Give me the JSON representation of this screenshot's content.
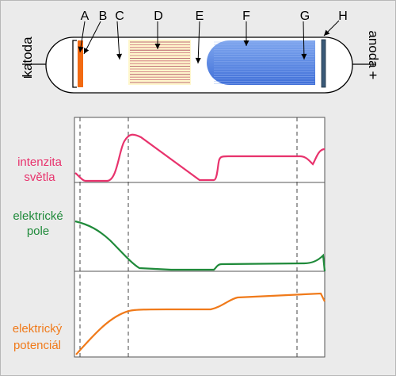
{
  "tube": {
    "cathode_label": "katoda",
    "anode_label": "anoda",
    "minus_sign": "–",
    "plus_sign": "+",
    "regions": [
      {
        "letter": "A"
      },
      {
        "letter": "B"
      },
      {
        "letter": "C"
      },
      {
        "letter": "D"
      },
      {
        "letter": "E"
      },
      {
        "letter": "F"
      },
      {
        "letter": "G"
      },
      {
        "letter": "H"
      }
    ]
  },
  "graphs": {
    "light_intensity": {
      "label_line1": "intenzita",
      "label_line2": "světla",
      "color": "#e8336d"
    },
    "electric_field": {
      "label_line1": "elektrické",
      "label_line2": "pole",
      "color": "#1f8a3a"
    },
    "electric_potential": {
      "label_line1": "elektrický",
      "label_line2": "potenciál",
      "color": "#f07a1a"
    }
  },
  "colors": {
    "background": "#ebebeb",
    "cathode": "#f26a12",
    "anode": "#3a5a78",
    "glow_D": "#fff7cc",
    "glow_F": "#6a8fe0"
  }
}
